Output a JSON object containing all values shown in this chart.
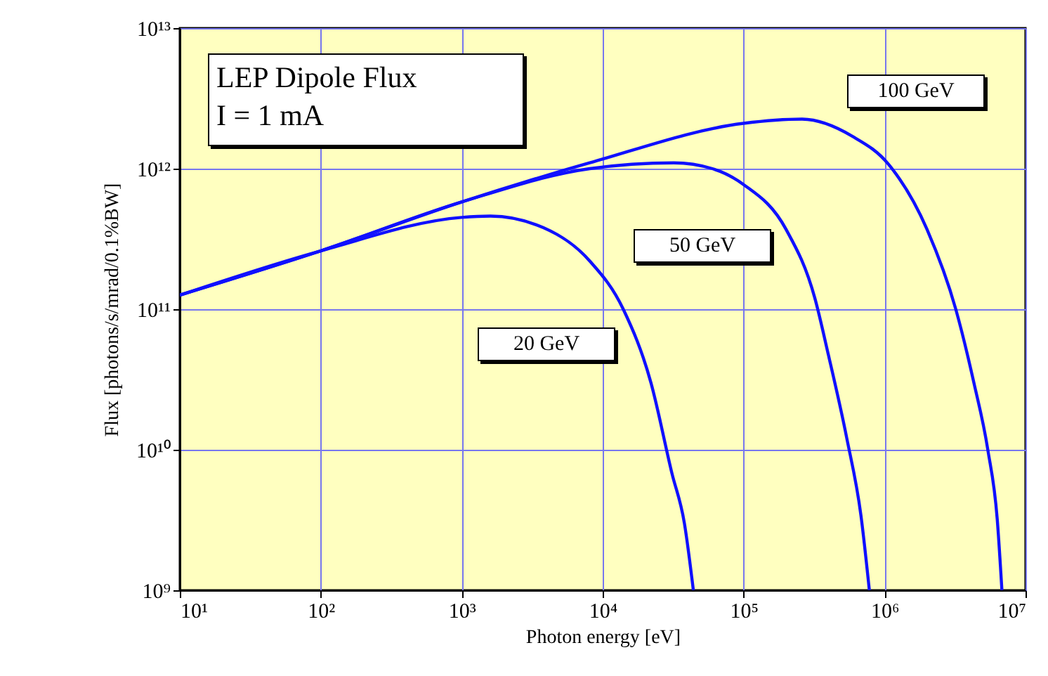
{
  "chart_data": {
    "type": "line",
    "annotations": [
      "LEP Dipole Flux",
      "I = 1 mA"
    ],
    "xlabel": "Photon energy [eV]",
    "ylabel": "Flux [photons/s/mrad/0.1%BW]",
    "log": "xy",
    "grid": true,
    "legend": false,
    "marker": "none",
    "line_style": "solid",
    "xlim": [
      10,
      10000000
    ],
    "ylim": [
      1000000000,
      10000000000000
    ],
    "xticks": [
      {
        "value": 10,
        "label": "10¹"
      },
      {
        "value": 100,
        "label": "10²"
      },
      {
        "value": 1000,
        "label": "10³"
      },
      {
        "value": 10000,
        "label": "10⁴"
      },
      {
        "value": 100000,
        "label": "10⁵"
      },
      {
        "value": 1000000,
        "label": "10⁶"
      },
      {
        "value": 10000000,
        "label": "10⁷"
      }
    ],
    "yticks": [
      {
        "value": 1000000000,
        "label": "10⁹"
      },
      {
        "value": 10000000000,
        "label": "10¹⁰"
      },
      {
        "value": 100000000000,
        "label": "10¹¹"
      },
      {
        "value": 1000000000000,
        "label": "10¹²"
      },
      {
        "value": 10000000000000,
        "label": "10¹³"
      }
    ],
    "series": [
      {
        "name": "20 GeV",
        "color": "#1010ff",
        "x": [
          10,
          100,
          1000,
          1600,
          3800,
          8100,
          14000,
          22000,
          31000,
          38000,
          44000
        ],
        "values": [
          126000000000,
          260000000000,
          450000000000,
          460000000000,
          380000000000,
          220000000000,
          100000000000,
          30000000000,
          6800000000,
          3000000000,
          1000000000
        ]
      },
      {
        "name": "50 GeV",
        "color": "#1010ff",
        "x": [
          10,
          100,
          1000,
          8100,
          32000,
          60000,
          100000,
          200000,
          320000,
          400000,
          540000,
          680000,
          780000
        ],
        "values": [
          126000000000,
          260000000000,
          580000000000,
          1000000000000,
          1100000000000,
          1000000000000,
          770000000000,
          370000000000,
          120000000000,
          47000000000,
          12000000000,
          3400000000,
          1000000000
        ]
      },
      {
        "name": "100 GeV",
        "color": "#1010ff",
        "x": [
          10,
          100,
          1000,
          8100,
          100000,
          260000,
          590000,
          1070000,
          2000000,
          3200000,
          4300000,
          5400000,
          6300000,
          6800000
        ],
        "values": [
          126000000000,
          260000000000,
          580000000000,
          1100000000000,
          2100000000000,
          2250000000000,
          1700000000000,
          1070000000000,
          370000000000,
          100000000000,
          30000000000,
          10000000000,
          3200000000,
          1000000000
        ]
      }
    ]
  }
}
